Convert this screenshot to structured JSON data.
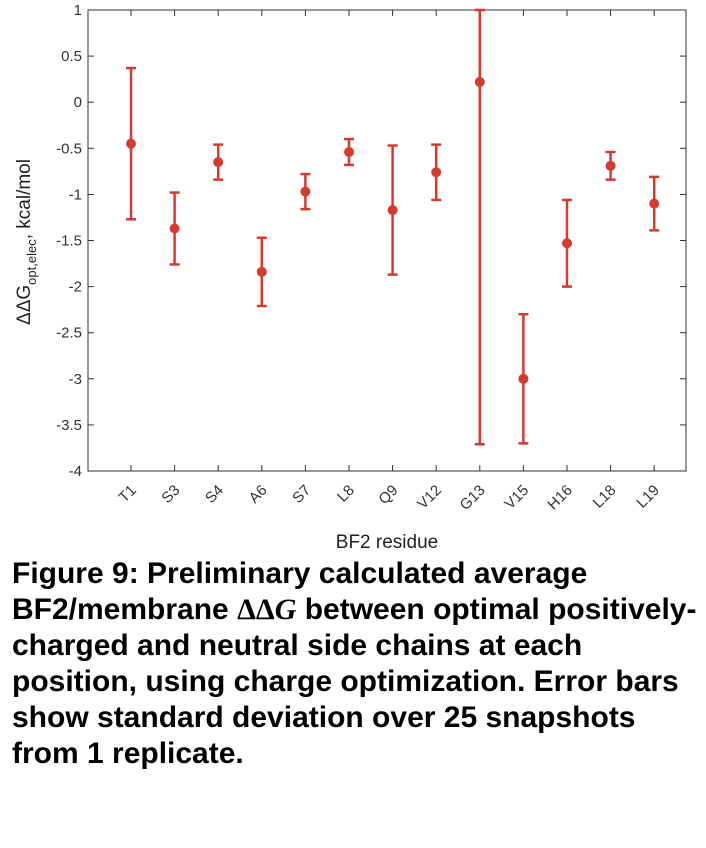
{
  "colors": {
    "series": "#d63a2f",
    "axis": "#333333",
    "grid_tick": "#555555"
  },
  "chart_data": {
    "type": "scatter",
    "error_bars": true,
    "categories": [
      "T1",
      "S3",
      "S4",
      "A6",
      "S7",
      "L8",
      "Q9",
      "V12",
      "G13",
      "V15",
      "H16",
      "L18",
      "L19"
    ],
    "values": [
      -0.45,
      -1.37,
      -0.65,
      -1.84,
      -0.97,
      -0.54,
      -1.17,
      -0.76,
      0.22,
      -3.0,
      -1.53,
      -0.69,
      -1.1
    ],
    "err": [
      0.82,
      0.39,
      0.19,
      0.37,
      0.19,
      0.14,
      0.7,
      0.3,
      3.93,
      0.7,
      0.47,
      0.15,
      0.29
    ],
    "ylim": [
      -4,
      1
    ],
    "yticks": [
      1,
      0.5,
      0,
      -0.5,
      -1,
      -1.5,
      -2,
      -2.5,
      -3,
      -3.5,
      -4
    ],
    "ytick_labels": [
      "1",
      "0.5",
      "0",
      "-0.5",
      "-1",
      "-1.5",
      "-2",
      "-2.5",
      "-3",
      "-3.5",
      "-4"
    ],
    "xlabel": "BF2 residue",
    "ylabel_parts": {
      "prefix": "ΔΔG",
      "sub": "opt,elec",
      "suffix": ", kcal/mol"
    },
    "grid": false,
    "legend": "none"
  },
  "caption": {
    "part1": "Figure 9: Preliminary calculated average BF2/membrane ",
    "symbol_delta": "ΔΔ",
    "symbol_g": "G",
    "part2": " between optimal positively-charged and neutral side chains at each position, using charge optimization.  Error bars show standard deviation over 25 snapshots from 1 replicate."
  }
}
